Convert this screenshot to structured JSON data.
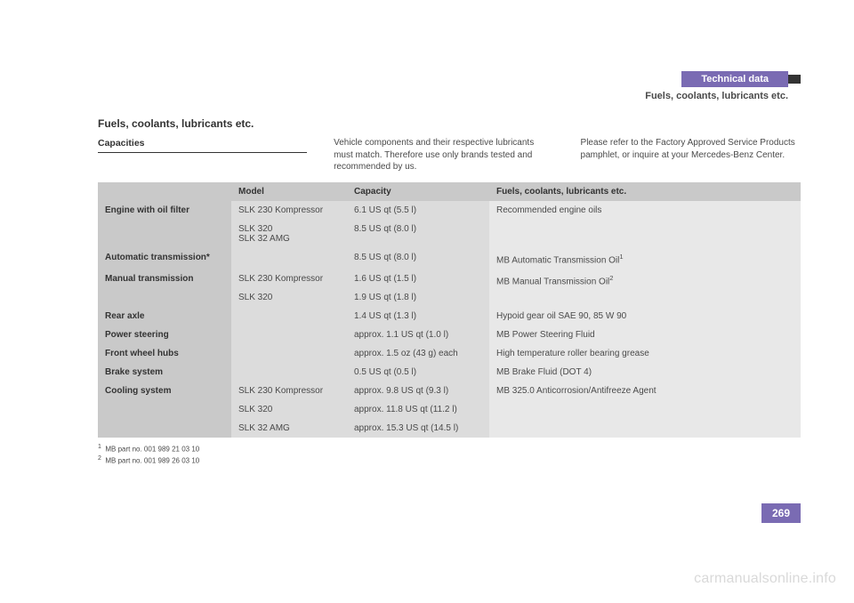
{
  "chapter": "Technical data",
  "subchapter": "Fuels, coolants, lubricants etc.",
  "section_title": "Fuels, coolants, lubricants etc.",
  "subsection": "Capacities",
  "intro_mid": "Vehicle components and their respective lubricants must match. Therefore use only brands tested and recommended by us.",
  "intro_right": "Please refer to the Factory Approved Service Products pamphlet, or inquire at your Mercedes-Benz Center.",
  "table": {
    "headers": {
      "col1": "",
      "col2": "Model",
      "col3": "Capacity",
      "col4": "Fuels, coolants, lubricants etc."
    },
    "rows": [
      {
        "label": "Engine with oil filter",
        "model": "SLK 230 Kompressor",
        "capacity": "6.1 US qt (5.5 l)",
        "fluid": "Recommended engine oils"
      },
      {
        "label": "",
        "model": "SLK 320\nSLK 32 AMG",
        "capacity": "8.5 US qt (8.0 l)",
        "fluid": ""
      },
      {
        "label": "Automatic transmission*",
        "model": "",
        "capacity": "8.5 US qt (8.0 l)",
        "fluid": "MB Automatic Transmission Oil",
        "sup": "1"
      },
      {
        "label": "Manual transmission",
        "model": "SLK 230 Kompressor",
        "capacity": "1.6 US qt (1.5 l)",
        "fluid": "MB Manual Transmission Oil",
        "sup": "2"
      },
      {
        "label": "",
        "model": "SLK 320",
        "capacity": "1.9 US qt (1.8 l)",
        "fluid": ""
      },
      {
        "label": "Rear axle",
        "model": "",
        "capacity": "1.4 US qt (1.3 l)",
        "fluid": "Hypoid gear oil SAE 90, 85 W 90"
      },
      {
        "label": "Power steering",
        "model": "",
        "capacity": "approx. 1.1 US qt (1.0 l)",
        "fluid": "MB Power Steering Fluid"
      },
      {
        "label": "Front wheel hubs",
        "model": "",
        "capacity": "approx. 1.5 oz (43 g) each",
        "fluid": "High temperature roller bearing grease"
      },
      {
        "label": "Brake system",
        "model": "",
        "capacity": "0.5 US qt (0.5 l)",
        "fluid": "MB Brake Fluid (DOT 4)"
      },
      {
        "label": "Cooling system",
        "model": "SLK 230 Kompressor",
        "capacity": "approx. 9.8 US qt (9.3 l)",
        "fluid": "MB 325.0 Anticorrosion/Antifreeze Agent"
      },
      {
        "label": "",
        "model": "SLK 320",
        "capacity": "approx. 11.8 US qt (11.2 l)",
        "fluid": ""
      },
      {
        "label": "",
        "model": "SLK 32 AMG",
        "capacity": "approx. 15.3 US qt (14.5 l)",
        "fluid": ""
      }
    ]
  },
  "footnotes": {
    "f1": "MB part no. 001 989 21 03 10",
    "f2": "MB part no. 001 989 26 03 10"
  },
  "page_number": "269",
  "watermark": "carmanualsonline.info",
  "colors": {
    "brand_purple": "#7a6bb3",
    "header_grey": "#c9c9c9",
    "cell_mid_grey": "#dcdcdc",
    "cell_light_grey": "#e8e8e8",
    "text": "#4a4a4a",
    "watermark": "#d9d9d9"
  }
}
